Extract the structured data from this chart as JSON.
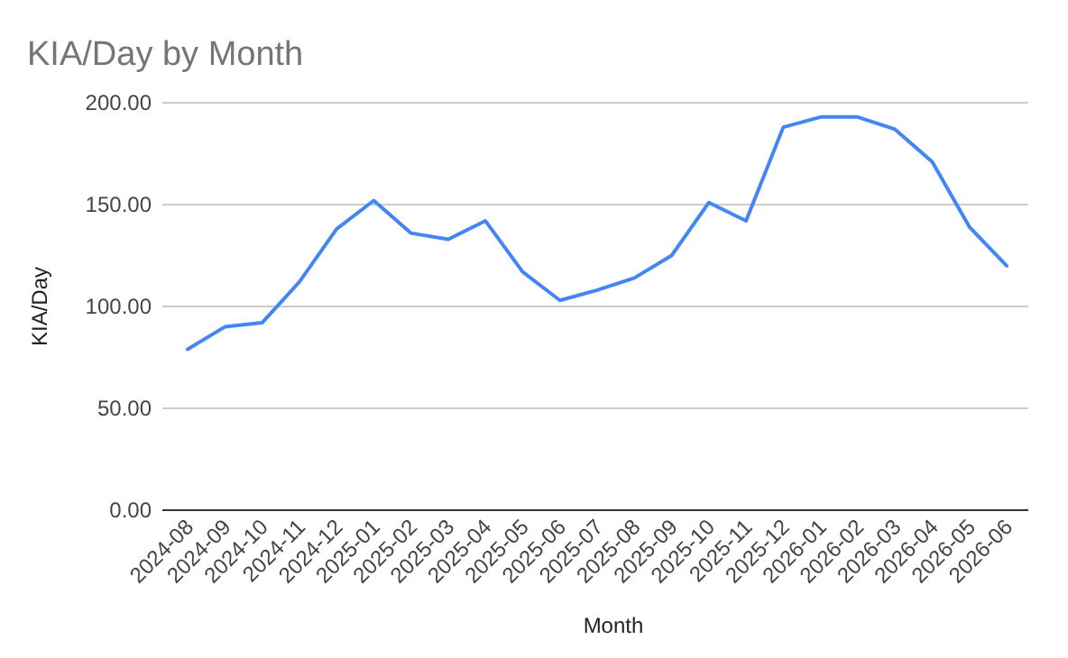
{
  "chart_data": {
    "type": "line",
    "title": "KIA/Day by Month",
    "xlabel": "Month",
    "ylabel": "KIA/Day",
    "categories": [
      "2024-08",
      "2024-09",
      "2024-10",
      "2024-11",
      "2024-12",
      "2025-01",
      "2025-02",
      "2025-03",
      "2025-04",
      "2025-05",
      "2025-06",
      "2025-07",
      "2025-08",
      "2025-09",
      "2025-10",
      "2025-11",
      "2025-12",
      "2026-01",
      "2026-02",
      "2026-03",
      "2026-04",
      "2026-05",
      "2026-06"
    ],
    "series": [
      {
        "color": "#4285f4",
        "values": [
          79,
          90,
          92,
          112,
          138,
          152,
          136,
          133,
          142,
          117,
          103,
          108,
          114,
          125,
          151,
          142,
          188,
          193,
          193,
          187,
          171,
          139,
          120
        ]
      }
    ],
    "ylim": [
      0,
      200
    ],
    "yticks": [
      {
        "value": 0,
        "label": "0.00"
      },
      {
        "value": 50,
        "label": "50.00"
      },
      {
        "value": 100,
        "label": "100.00"
      },
      {
        "value": 150,
        "label": "150.00"
      },
      {
        "value": 200,
        "label": "200.00"
      }
    ],
    "grid": "y",
    "marker": "none",
    "line_style": "solid"
  }
}
